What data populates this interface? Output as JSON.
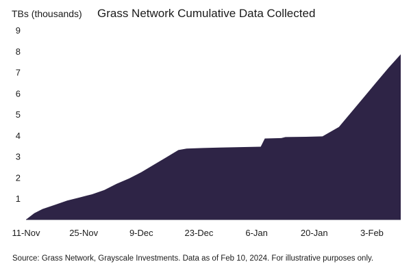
{
  "chart_data": {
    "type": "area",
    "title": "Grass Network Cumulative Data Collected",
    "ylabel": "TBs (thousands)",
    "xlabel": "",
    "ylim": [
      0,
      9
    ],
    "y_ticks": [
      "9",
      "8",
      "7",
      "6",
      "5",
      "4",
      "3",
      "2",
      "1"
    ],
    "x_tick_labels": [
      "11-Nov",
      "25-Nov",
      "9-Dec",
      "23-Dec",
      "6-Jan",
      "20-Jan",
      "3-Feb"
    ],
    "x_start": "2023-11-11",
    "x_end": "2024-02-10",
    "grid": false,
    "legend": "none",
    "fill_color": "#2e2446",
    "series": [
      {
        "values": [
          {
            "x": "2023-11-11",
            "y": 0.0
          },
          {
            "x": "2023-11-13",
            "y": 0.3
          },
          {
            "x": "2023-11-15",
            "y": 0.5
          },
          {
            "x": "2023-11-18",
            "y": 0.7
          },
          {
            "x": "2023-11-21",
            "y": 0.9
          },
          {
            "x": "2023-11-24",
            "y": 1.05
          },
          {
            "x": "2023-11-27",
            "y": 1.2
          },
          {
            "x": "2023-11-30",
            "y": 1.4
          },
          {
            "x": "2023-12-03",
            "y": 1.7
          },
          {
            "x": "2023-12-06",
            "y": 1.95
          },
          {
            "x": "2023-12-09",
            "y": 2.25
          },
          {
            "x": "2023-12-12",
            "y": 2.6
          },
          {
            "x": "2023-12-15",
            "y": 2.95
          },
          {
            "x": "2023-12-18",
            "y": 3.3
          },
          {
            "x": "2023-12-20",
            "y": 3.37
          },
          {
            "x": "2023-12-24",
            "y": 3.4
          },
          {
            "x": "2023-12-28",
            "y": 3.42
          },
          {
            "x": "2024-01-02",
            "y": 3.44
          },
          {
            "x": "2024-01-07",
            "y": 3.46
          },
          {
            "x": "2024-01-08",
            "y": 3.85
          },
          {
            "x": "2024-01-12",
            "y": 3.87
          },
          {
            "x": "2024-01-13",
            "y": 3.92
          },
          {
            "x": "2024-01-18",
            "y": 3.93
          },
          {
            "x": "2024-01-22",
            "y": 3.95
          },
          {
            "x": "2024-01-26",
            "y": 4.4
          },
          {
            "x": "2024-01-29",
            "y": 5.1
          },
          {
            "x": "2024-02-01",
            "y": 5.8
          },
          {
            "x": "2024-02-04",
            "y": 6.5
          },
          {
            "x": "2024-02-07",
            "y": 7.2
          },
          {
            "x": "2024-02-10",
            "y": 7.85
          }
        ]
      }
    ]
  },
  "source_note": "Source: Grass Network, Grayscale Investments. Data as of Feb 10, 2024. For illustrative purposes only."
}
